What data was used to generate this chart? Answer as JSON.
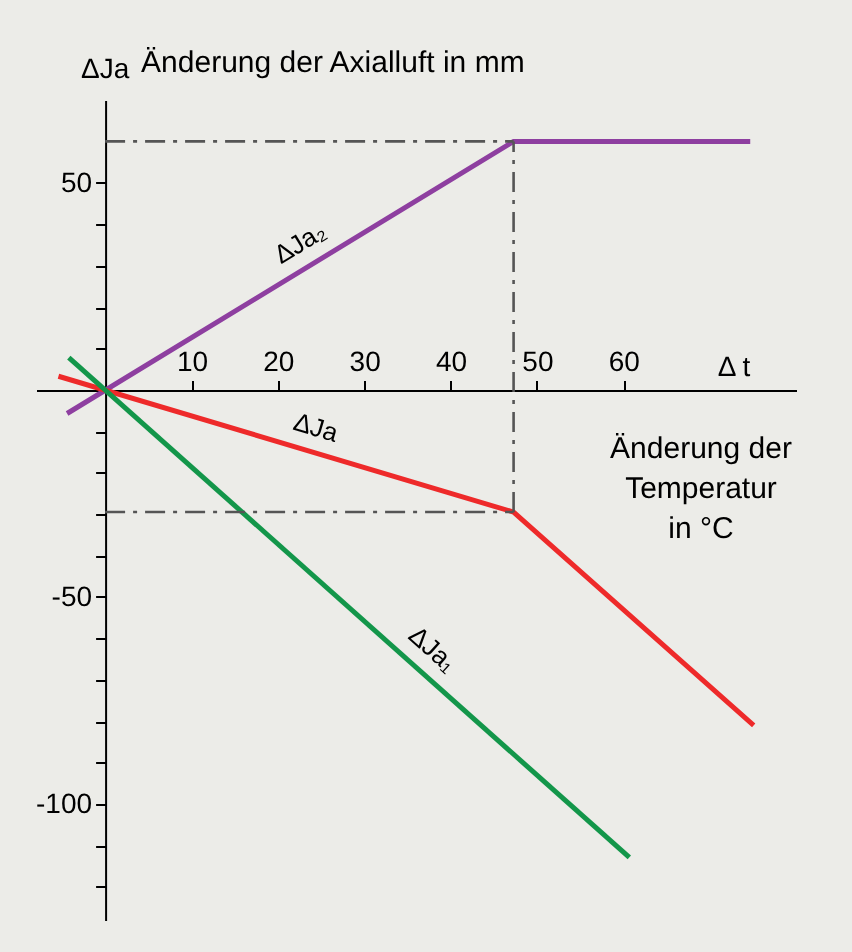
{
  "chart_data": {
    "type": "line",
    "xlabel": "Δ t",
    "ylabel": "ΔJa",
    "annotations": [
      "Änderung der Axialluft in mm",
      "Änderung der\nTemperatur\nin °C"
    ],
    "xlim": [
      -8,
      80
    ],
    "ylim": [
      -128,
      70
    ],
    "xticks": [
      10,
      20,
      30,
      40,
      50,
      60
    ],
    "yticks": [
      50,
      {
        "value": 40,
        "label": null
      },
      {
        "value": 30,
        "label": null
      },
      {
        "value": 20,
        "label": null
      },
      {
        "value": 10,
        "label": null
      },
      {
        "value": -10,
        "label": null
      },
      {
        "value": -20,
        "label": null
      },
      {
        "value": -30,
        "label": null
      },
      {
        "value": -40,
        "label": null
      },
      -50,
      {
        "value": -60,
        "label": null
      },
      {
        "value": -70,
        "label": null
      },
      {
        "value": -80,
        "label": null
      },
      {
        "value": -90,
        "label": null
      },
      -100,
      {
        "value": -110,
        "label": null
      },
      {
        "value": -120,
        "label": null
      }
    ],
    "series": [
      {
        "name": "ΔJa₂",
        "color": "#8e3fa0",
        "x": [
          -4.4,
          47.3,
          74.7
        ],
        "values": [
          -5.7,
          60,
          60
        ]
      },
      {
        "name": "ΔJa",
        "color": "#ee2a2a",
        "x": [
          -5.4,
          47.3,
          75.1
        ],
        "values": [
          3.3,
          -29.5,
          -81
        ]
      },
      {
        "name": "ΔJa₁",
        "color": "#13964a",
        "x": [
          -4.2,
          60.7
        ],
        "values": [
          7.8,
          -112.9
        ]
      }
    ],
    "ref_lines": [
      {
        "axis": "y",
        "value": 60,
        "color": "#555555",
        "line_style": "dashed"
      },
      {
        "axis": "y",
        "value": -29.5,
        "color": "#555555",
        "line_style": "dashed"
      },
      {
        "axis": "x",
        "value": 47.3,
        "color": "#555555",
        "line_style": "dashed"
      }
    ],
    "marker": "none",
    "line_style": "solid"
  }
}
